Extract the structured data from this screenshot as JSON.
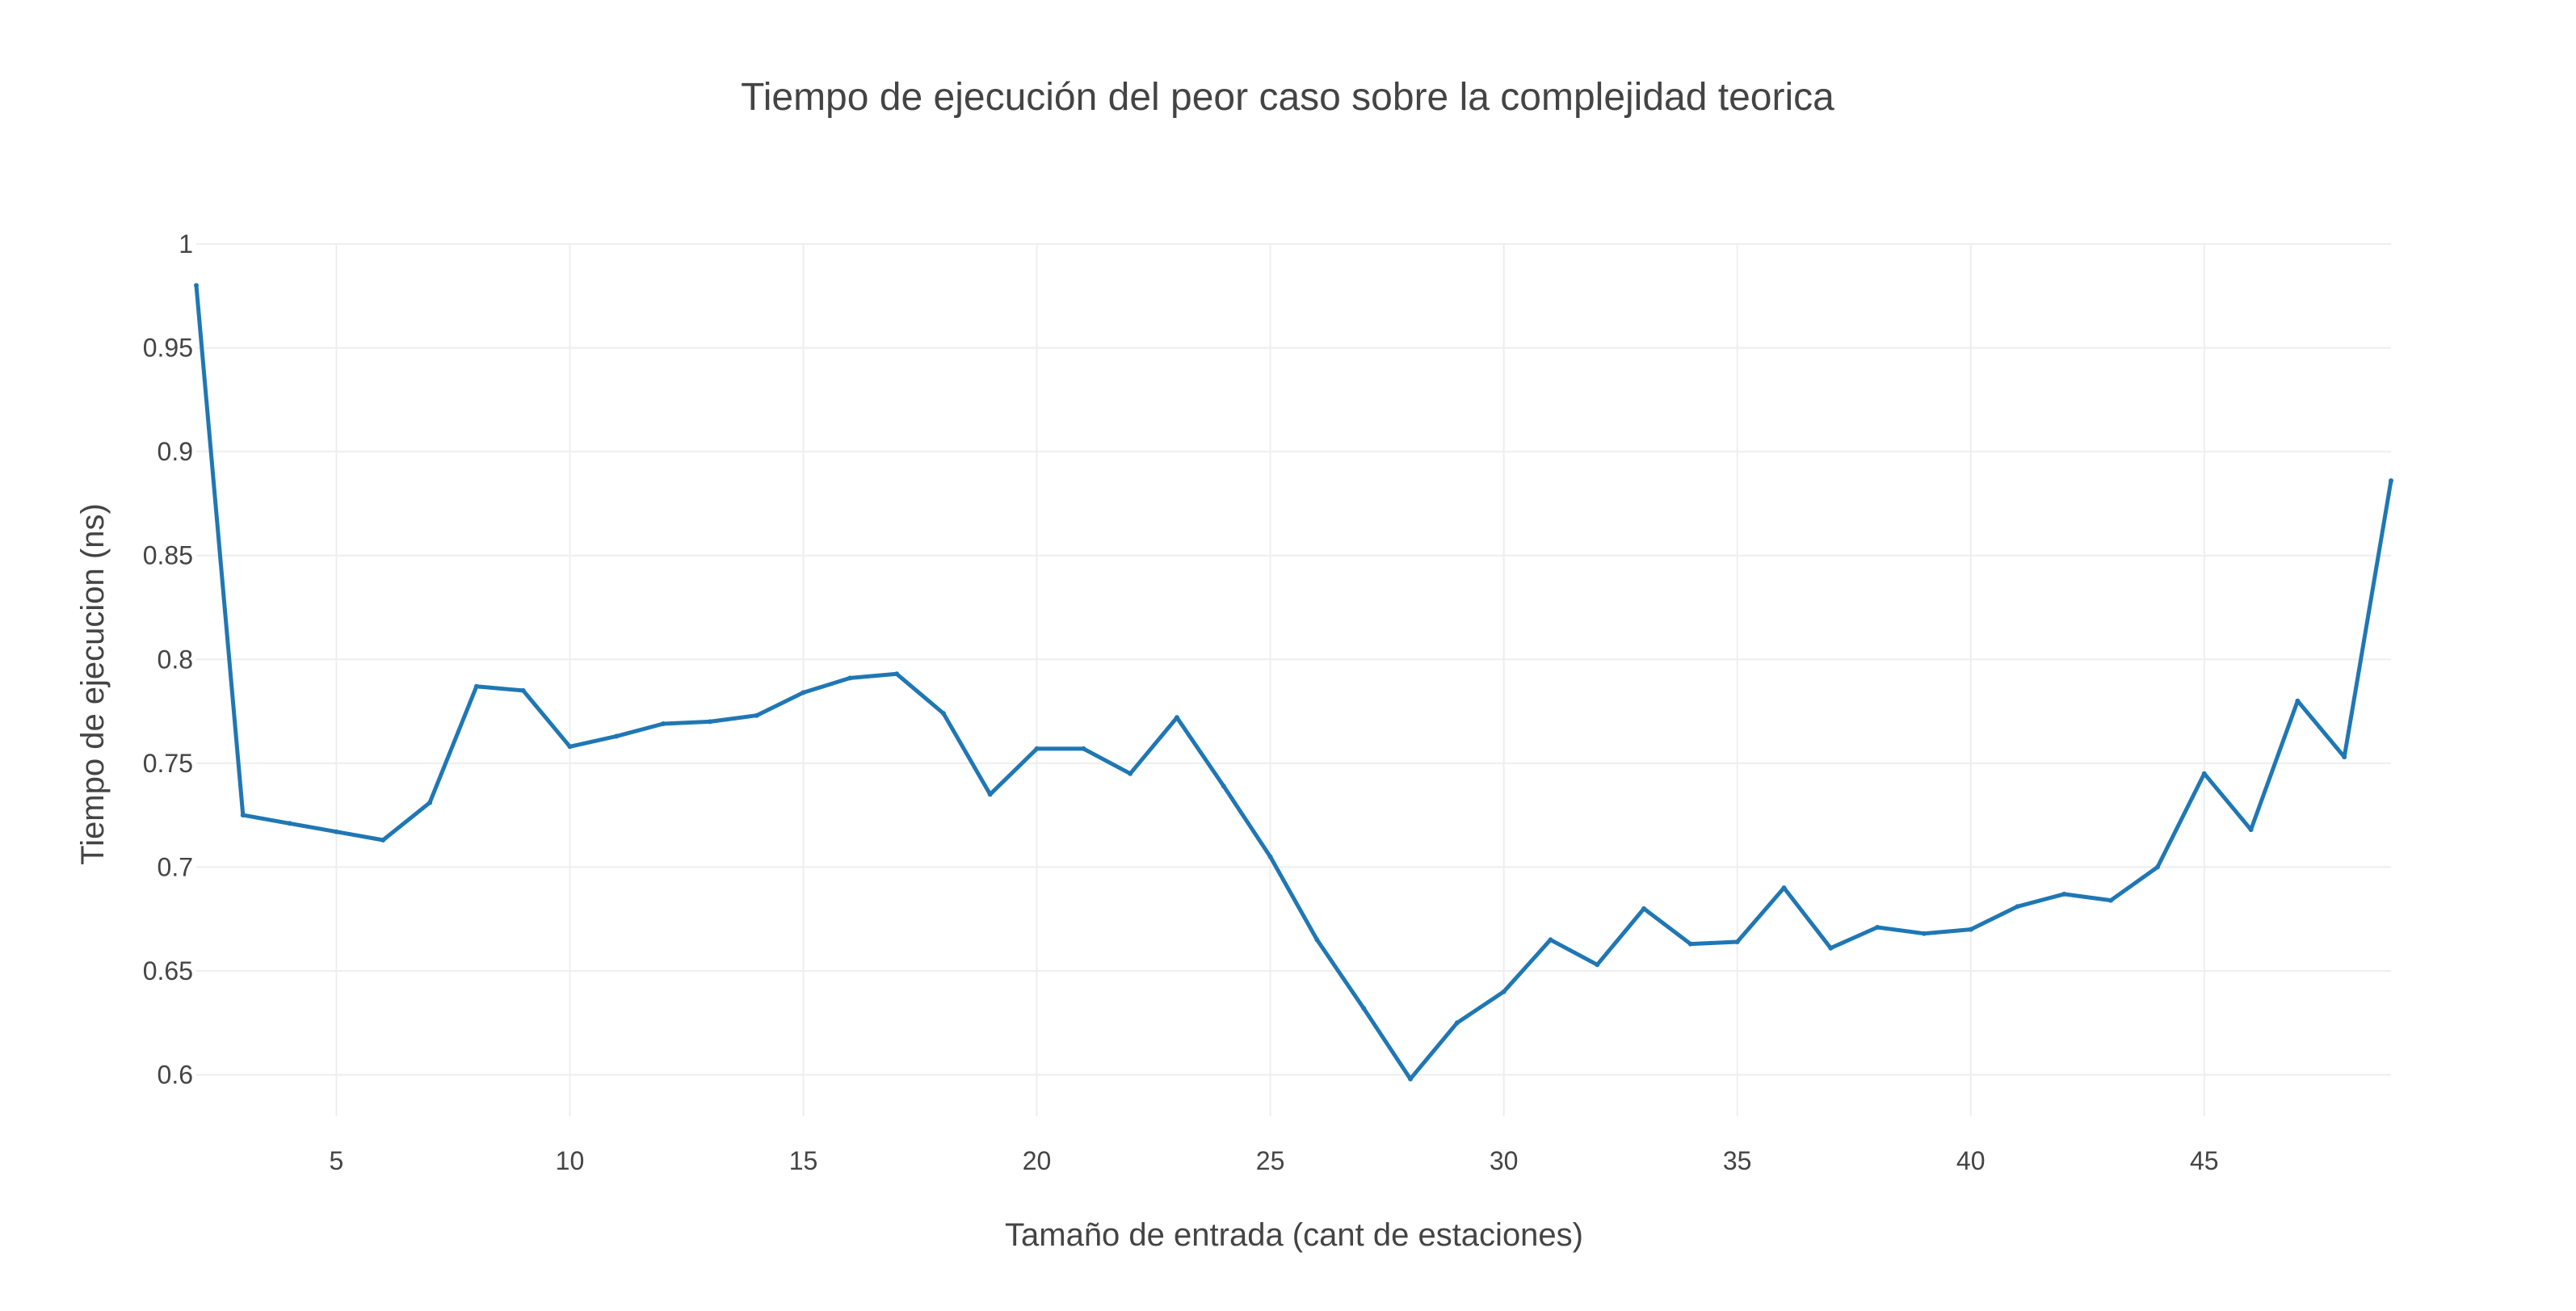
{
  "chart_data": {
    "type": "line",
    "title": "Tiempo de ejecución del peor caso sobre  la complejidad teorica",
    "xlabel": "Tamaño de entrada (cant de estaciones)",
    "ylabel": "Tiempo de ejecucion (ns)",
    "xlim": [
      2,
      49
    ],
    "ylim": [
      0.58,
      1.0
    ],
    "x_ticks": [
      5,
      10,
      15,
      20,
      25,
      30,
      35,
      40,
      45
    ],
    "x_tick_labels": [
      "5",
      "10",
      "15",
      "20",
      "25",
      "30",
      "35",
      "40",
      "45"
    ],
    "y_ticks": [
      0.6,
      0.65,
      0.7,
      0.75,
      0.8,
      0.85,
      0.9,
      0.95,
      1.0
    ],
    "y_tick_labels": [
      "0.6",
      "0.65",
      "0.7",
      "0.75",
      "0.8",
      "0.85",
      "0.9",
      "0.95",
      "1"
    ],
    "grid": true,
    "legend": false,
    "colors": {
      "series": "#1f77b4",
      "grid": "#eeeeee",
      "text": "#444444"
    },
    "series": [
      {
        "x": [
          2,
          3,
          4,
          5,
          6,
          7,
          8,
          9,
          10,
          11,
          12,
          13,
          14,
          15,
          16,
          17,
          18,
          19,
          20,
          21,
          22,
          23,
          24,
          25,
          26,
          27,
          28,
          29,
          30,
          31,
          32,
          33,
          34,
          35,
          36,
          37,
          38,
          39,
          40,
          41,
          42,
          43,
          44,
          45,
          46,
          47,
          48,
          49
        ],
        "y": [
          0.98,
          0.725,
          0.721,
          0.717,
          0.713,
          0.731,
          0.787,
          0.785,
          0.758,
          0.763,
          0.769,
          0.77,
          0.773,
          0.784,
          0.791,
          0.793,
          0.774,
          0.735,
          0.757,
          0.757,
          0.745,
          0.772,
          0.739,
          0.705,
          0.665,
          0.632,
          0.598,
          0.625,
          0.64,
          0.665,
          0.653,
          0.68,
          0.663,
          0.664,
          0.69,
          0.661,
          0.671,
          0.668,
          0.67,
          0.681,
          0.687,
          0.684,
          0.7,
          0.745,
          0.718,
          0.78,
          0.753,
          0.886
        ]
      }
    ]
  }
}
